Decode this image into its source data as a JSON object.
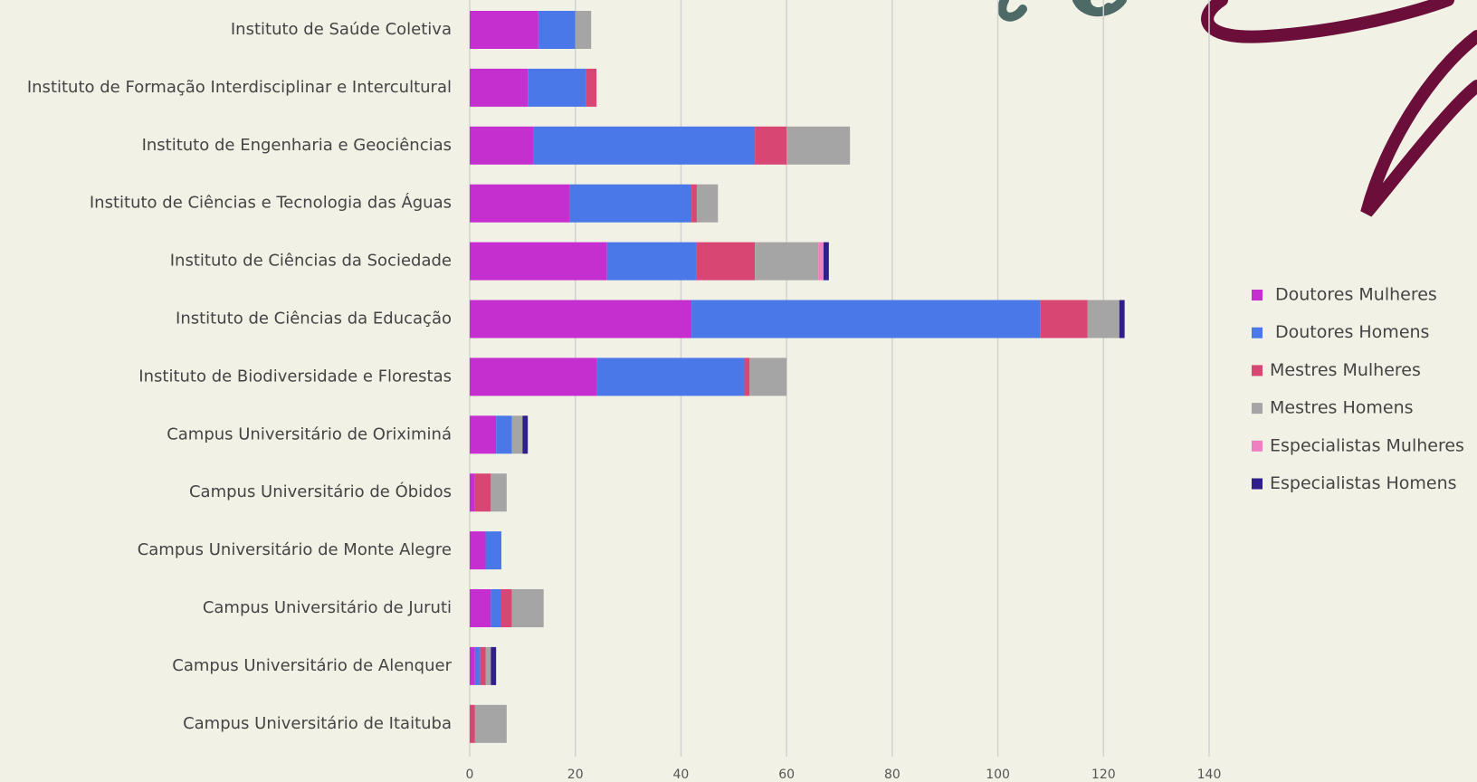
{
  "chart_data": {
    "type": "bar",
    "orientation": "horizontal",
    "stacked": true,
    "categories": [
      "Instituto de Saúde Coletiva",
      "Instituto de Formação Interdisciplinar e Intercultural",
      "Instituto de Engenharia e Geociências",
      "Instituto de Ciências e Tecnologia das Águas",
      "Instituto de Ciências da Sociedade",
      "Instituto de Ciências da Educação",
      "Instituto de Biodiversidade e Florestas",
      "Campus Universitário de Oriximiná",
      "Campus Universitário de Óbidos",
      "Campus Universitário de Monte Alegre",
      "Campus Universitário de Juruti",
      "Campus Universitário de Alenquer",
      "Campus Universitário de Itaituba"
    ],
    "series": [
      {
        "name": "Doutores Mulheres",
        "color": "#c62fcf",
        "values": [
          13,
          11,
          12,
          19,
          26,
          42,
          24,
          5,
          1,
          3,
          4,
          1,
          0
        ]
      },
      {
        "name": "Doutores Homens",
        "color": "#4a78e8",
        "values": [
          7,
          11,
          42,
          23,
          17,
          66,
          28,
          3,
          0,
          3,
          2,
          1,
          0
        ]
      },
      {
        "name": "Mestres Mulheres",
        "color": "#d84673",
        "values": [
          0,
          2,
          6,
          1,
          11,
          9,
          1,
          0,
          3,
          0,
          2,
          1,
          1
        ]
      },
      {
        "name": "Mestres Homens",
        "color": "#a5a5a5",
        "values": [
          3,
          0,
          12,
          4,
          12,
          6,
          7,
          2,
          3,
          0,
          6,
          1,
          6
        ]
      },
      {
        "name": "Especialistas Mulheres",
        "color": "#ee7fc0",
        "values": [
          0,
          0,
          0,
          0,
          1,
          0,
          0,
          0,
          0,
          0,
          0,
          0,
          0
        ]
      },
      {
        "name": "Especialistas Homens",
        "color": "#2e1f8c",
        "values": [
          0,
          0,
          0,
          0,
          1,
          1,
          0,
          1,
          0,
          0,
          0,
          1,
          0
        ]
      }
    ],
    "xlim": [
      0,
      140
    ],
    "xticks": [
      0,
      20,
      40,
      60,
      80,
      100,
      120,
      140
    ],
    "grid": true,
    "legend": "right"
  }
}
